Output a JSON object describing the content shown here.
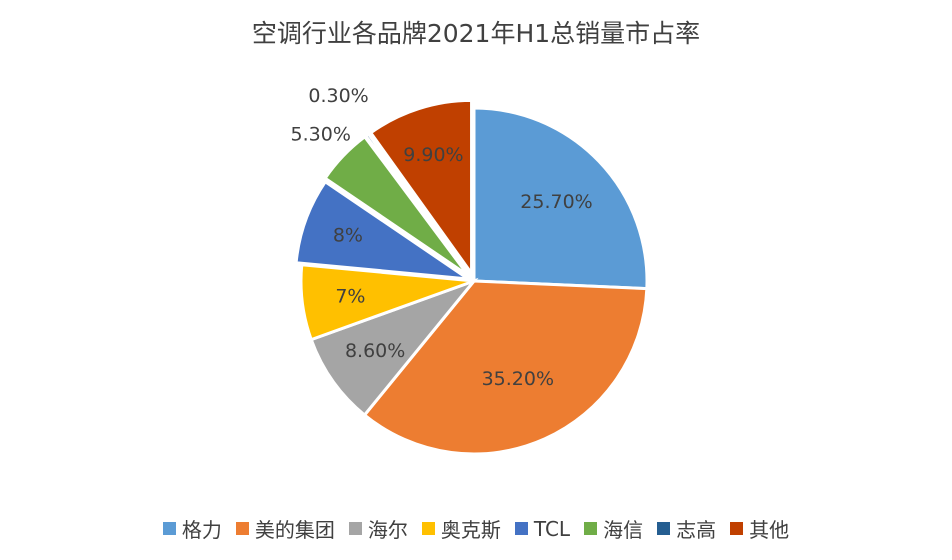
{
  "chart_data": {
    "type": "pie",
    "title": "空调行业各品牌2021年H1总销量市占率",
    "legend_position": "bottom",
    "slices": [
      {
        "name": "格力",
        "value": 25.7,
        "label": "25.70%",
        "color": "#5B9BD5"
      },
      {
        "name": "美的集团",
        "value": 35.2,
        "label": "35.20%",
        "color": "#ED7D31"
      },
      {
        "name": "海尔",
        "value": 8.6,
        "label": "8.60%",
        "color": "#A5A5A5"
      },
      {
        "name": "奥克斯",
        "value": 7,
        "label": "7%",
        "color": "#FFC000"
      },
      {
        "name": "TCL",
        "value": 8,
        "label": "8%",
        "color": "#4472C4"
      },
      {
        "name": "海信",
        "value": 5.3,
        "label": "5.30%",
        "color": "#70AD47"
      },
      {
        "name": "志高",
        "value": 0.3,
        "label": "0.30%",
        "color": "#255E91"
      },
      {
        "name": "其他",
        "value": 9.9,
        "label": "9.90%",
        "color": "#C04000"
      }
    ]
  }
}
